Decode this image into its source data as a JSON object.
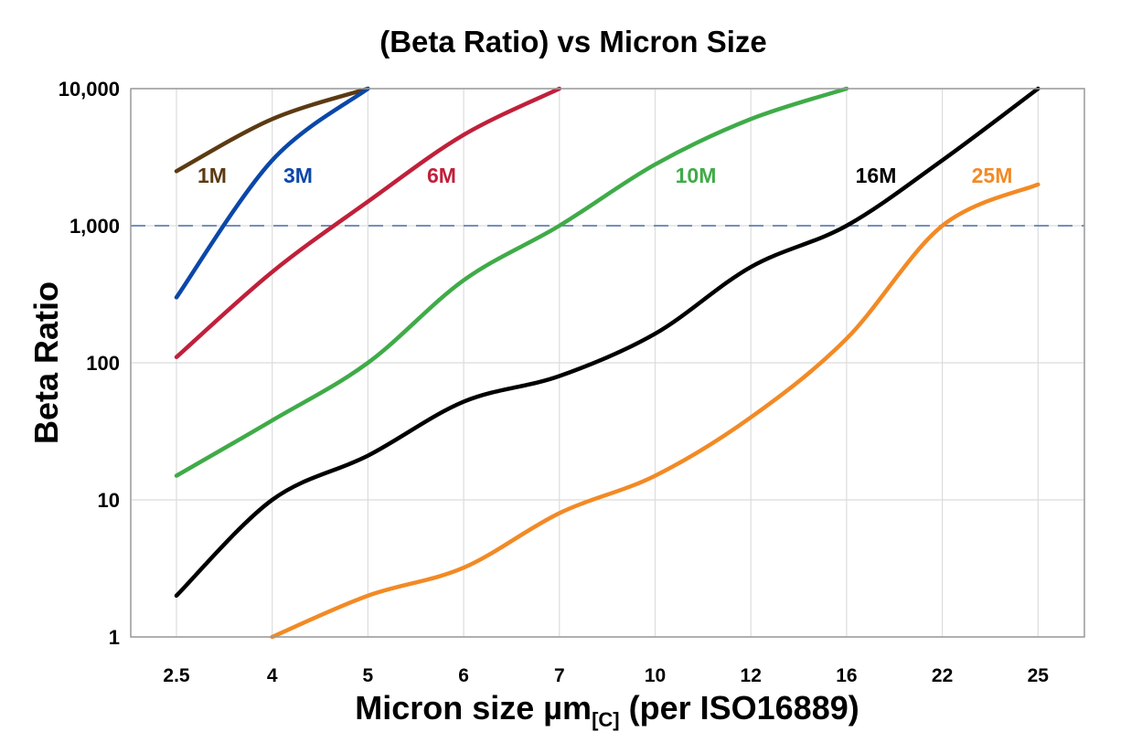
{
  "chart_data": {
    "type": "line",
    "title": "(Beta Ratio) vs Micron Size",
    "xlabel": {
      "main": "Micron size µm",
      "subscript": "[C]",
      "suffix": " (per ISO16889)"
    },
    "ylabel": "Beta Ratio",
    "x_scale": "categorical",
    "y_scale": "log",
    "ylim": [
      1,
      10000
    ],
    "categories": [
      "2.5",
      "4",
      "5",
      "6",
      "7",
      "10",
      "12",
      "16",
      "22",
      "25"
    ],
    "yticks": [
      1,
      10,
      100,
      1000,
      10000
    ],
    "ytick_labels": [
      "1",
      "10",
      "100",
      "1,000",
      "10,000"
    ],
    "grid": true,
    "reference_line": {
      "value": 1000,
      "style": "dashed",
      "color": "#4a6fa5"
    },
    "series": [
      {
        "name": "1M",
        "color": "#5c3a12",
        "values": [
          2500,
          6000,
          10000,
          null,
          null,
          null,
          null,
          null,
          null,
          null
        ]
      },
      {
        "name": "3M",
        "color": "#0a47a8",
        "values": [
          300,
          3000,
          10000,
          null,
          null,
          null,
          null,
          null,
          null,
          null
        ]
      },
      {
        "name": "6M",
        "color": "#c0203a",
        "values": [
          110,
          460,
          1500,
          4600,
          10000,
          null,
          null,
          null,
          null,
          null
        ]
      },
      {
        "name": "10M",
        "color": "#3fab48",
        "values": [
          15,
          38,
          100,
          400,
          1000,
          2800,
          6000,
          10000,
          null,
          null
        ]
      },
      {
        "name": "16M",
        "color": "#000000",
        "values": [
          2,
          10,
          21,
          52,
          80,
          163,
          500,
          1000,
          3000,
          10000
        ]
      },
      {
        "name": "25M",
        "color": "#f28a25",
        "values": [
          null,
          1,
          2,
          3.2,
          8,
          15,
          40,
          150,
          1000,
          2000
        ]
      }
    ]
  }
}
